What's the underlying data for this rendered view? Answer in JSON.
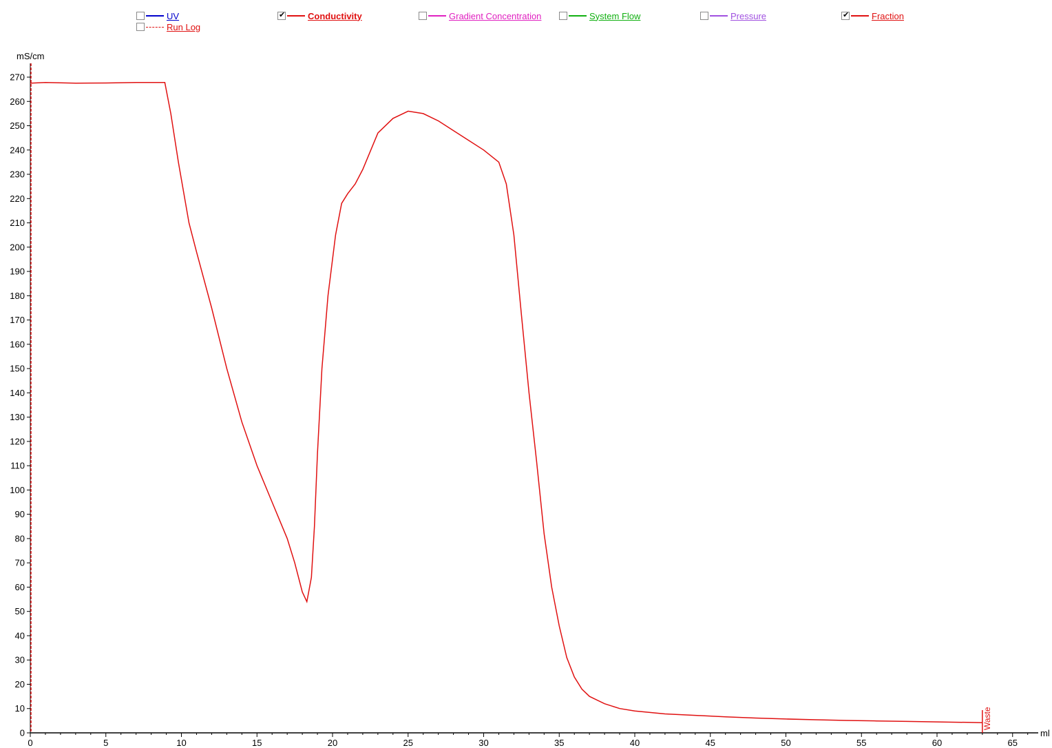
{
  "legend": [
    {
      "label": "UV",
      "color": "#0000cc",
      "checked": false,
      "bold": false,
      "style": "solid"
    },
    {
      "label": "Conductivity",
      "color": "#e01010",
      "checked": true,
      "bold": true,
      "style": "solid"
    },
    {
      "label": "Gradient Concentration",
      "color": "#e020c0",
      "checked": false,
      "bold": false,
      "style": "solid"
    },
    {
      "label": "System Flow",
      "color": "#10b010",
      "checked": false,
      "bold": false,
      "style": "solid"
    },
    {
      "label": "Pressure",
      "color": "#a050e0",
      "checked": false,
      "bold": false,
      "style": "solid"
    },
    {
      "label": "Fraction",
      "color": "#e01010",
      "checked": true,
      "bold": false,
      "style": "solid"
    },
    {
      "label": "Run Log",
      "color": "#e01010",
      "checked": false,
      "bold": false,
      "style": "dashed"
    }
  ],
  "chart_data": {
    "type": "line",
    "ylabel": "mS/cm",
    "xlabel": "ml",
    "xlim": [
      0,
      67
    ],
    "ylim": [
      0,
      275
    ],
    "x_ticks": [
      0,
      5,
      10,
      15,
      20,
      25,
      30,
      35,
      40,
      45,
      50,
      55,
      60,
      65
    ],
    "y_ticks": [
      0,
      10,
      20,
      30,
      40,
      50,
      60,
      70,
      80,
      90,
      100,
      110,
      120,
      130,
      140,
      150,
      160,
      170,
      180,
      190,
      200,
      210,
      220,
      230,
      240,
      250,
      260,
      270
    ],
    "series": [
      {
        "name": "Conductivity",
        "color": "#e01010",
        "x": [
          0,
          1,
          3,
          5,
          7,
          8.9,
          9.3,
          9.8,
          10.5,
          11,
          12,
          13,
          14,
          15,
          16,
          17,
          17.5,
          18,
          18.3,
          18.6,
          18.8,
          19,
          19.3,
          19.7,
          20.2,
          20.6,
          21,
          21.5,
          22,
          23,
          24,
          25,
          26,
          27,
          28,
          29,
          30,
          31,
          31.5,
          32,
          32.5,
          33,
          33.5,
          34,
          34.5,
          35,
          35.5,
          36,
          36.5,
          37,
          38,
          39,
          40,
          42,
          44,
          46,
          48,
          50,
          52,
          54,
          56,
          58,
          60,
          62,
          63
        ],
        "y": [
          267.5,
          267.8,
          267.5,
          267.6,
          267.8,
          267.8,
          255,
          235,
          210,
          198,
          175,
          150,
          128,
          110,
          95,
          80,
          70,
          58,
          54,
          64,
          85,
          115,
          150,
          180,
          205,
          218,
          222,
          226,
          232,
          247,
          253,
          256,
          255,
          252,
          248,
          244,
          240,
          235,
          226,
          205,
          172,
          140,
          112,
          82,
          60,
          44,
          31,
          23,
          18,
          15,
          12,
          10,
          9,
          7.8,
          7.2,
          6.6,
          6.1,
          5.7,
          5.4,
          5.1,
          4.9,
          4.7,
          4.5,
          4.3,
          4.2
        ]
      }
    ],
    "annotations": [
      {
        "text": "Waste",
        "x": 63,
        "color": "#e01010"
      }
    ],
    "grid": false,
    "legend_position": "top"
  }
}
